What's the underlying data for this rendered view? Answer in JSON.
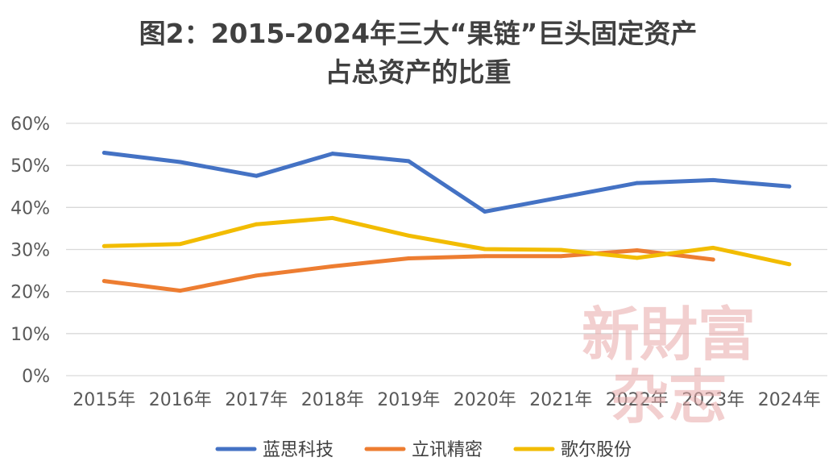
{
  "chart_data": {
    "type": "line",
    "title_lines": [
      "图2：2015-2024年三大“果链”巨头固定资产",
      "占总资产的比重"
    ],
    "categories": [
      "2015年",
      "2016年",
      "2017年",
      "2018年",
      "2019年",
      "2020年",
      "2021年",
      "2022年",
      "2023年",
      "2024年"
    ],
    "series": [
      {
        "name": "蓝思科技",
        "color": "#4472C4",
        "values": [
          53.0,
          50.8,
          47.5,
          52.8,
          51.0,
          39.0,
          42.4,
          45.8,
          46.5,
          45.0
        ]
      },
      {
        "name": "立讯精密",
        "color": "#ED7D31",
        "values": [
          22.5,
          20.2,
          23.8,
          26.0,
          27.9,
          28.4,
          28.4,
          29.8,
          27.6,
          null
        ]
      },
      {
        "name": "歌尔股份",
        "color": "#F2BC00",
        "values": [
          30.8,
          31.3,
          36.0,
          37.5,
          33.3,
          30.1,
          29.9,
          28.0,
          30.4,
          26.5
        ]
      }
    ],
    "ylim": [
      0,
      60
    ],
    "yticks": [
      0,
      10,
      20,
      30,
      40,
      50,
      60
    ],
    "ytick_labels": [
      "0%",
      "10%",
      "20%",
      "30%",
      "40%",
      "50%",
      "60%"
    ],
    "grid": true,
    "legend_position": "bottom",
    "watermark": [
      "新財富",
      "杂志"
    ]
  }
}
